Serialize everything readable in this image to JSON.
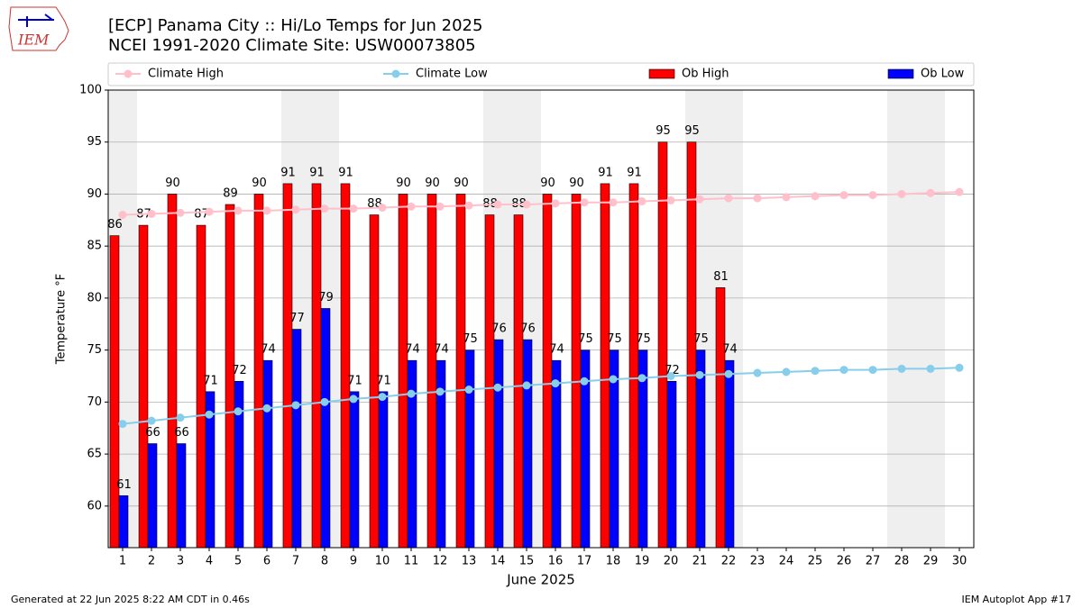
{
  "chart_data": {
    "type": "bar",
    "title": "[ECP] Panama City :: Hi/Lo Temps for Jun 2025",
    "subtitle": "NCEI 1991-2020 Climate Site: USW00073805",
    "xlabel": "June 2025",
    "ylabel": "Temperature °F",
    "footer_left": "Generated at 22 Jun 2025 8:22 AM CDT in 0.46s",
    "footer_right": "IEM Autoplot App #17",
    "logo_text": "IEM",
    "x": [
      1,
      2,
      3,
      4,
      5,
      6,
      7,
      8,
      9,
      10,
      11,
      12,
      13,
      14,
      15,
      16,
      17,
      18,
      19,
      20,
      21,
      22,
      23,
      24,
      25,
      26,
      27,
      28,
      29,
      30
    ],
    "xlim": [
      0.5,
      30.5
    ],
    "xticks": [
      1,
      2,
      3,
      4,
      5,
      6,
      7,
      8,
      9,
      10,
      11,
      12,
      13,
      14,
      15,
      16,
      17,
      18,
      19,
      20,
      21,
      22,
      23,
      24,
      25,
      26,
      27,
      28,
      29,
      30
    ],
    "ylim": [
      56,
      100
    ],
    "yticks": [
      60,
      65,
      70,
      75,
      80,
      85,
      90,
      95,
      100
    ],
    "grid": true,
    "series": [
      {
        "name": "Climate High",
        "color": "#ffc0cb",
        "type": "line",
        "values": [
          88.0,
          88.1,
          88.2,
          88.3,
          88.4,
          88.4,
          88.5,
          88.6,
          88.6,
          88.7,
          88.8,
          88.8,
          88.9,
          89.0,
          89.0,
          89.1,
          89.2,
          89.2,
          89.3,
          89.4,
          89.5,
          89.6,
          89.6,
          89.7,
          89.8,
          89.9,
          89.9,
          90.0,
          90.1,
          90.2
        ]
      },
      {
        "name": "Climate Low",
        "color": "#87ceeb",
        "type": "line",
        "values": [
          67.9,
          68.2,
          68.5,
          68.8,
          69.1,
          69.4,
          69.7,
          70.0,
          70.3,
          70.5,
          70.8,
          71.0,
          71.2,
          71.4,
          71.6,
          71.8,
          72.0,
          72.2,
          72.3,
          72.5,
          72.6,
          72.7,
          72.8,
          72.9,
          73.0,
          73.1,
          73.1,
          73.2,
          73.2,
          73.3
        ]
      },
      {
        "name": "Ob High",
        "color": "#ff0000",
        "type": "bar",
        "values": [
          86,
          87,
          90,
          87,
          89,
          90,
          91,
          91,
          91,
          88,
          90,
          90,
          90,
          88,
          88,
          90,
          90,
          91,
          91,
          95,
          95,
          81,
          null,
          null,
          null,
          null,
          null,
          null,
          null,
          null
        ]
      },
      {
        "name": "Ob Low",
        "color": "#0000ff",
        "type": "bar",
        "values": [
          61,
          66,
          66,
          71,
          72,
          74,
          77,
          79,
          71,
          71,
          74,
          74,
          75,
          76,
          76,
          74,
          75,
          75,
          75,
          72,
          75,
          74,
          null,
          null,
          null,
          null,
          null,
          null,
          null,
          null
        ]
      }
    ]
  }
}
